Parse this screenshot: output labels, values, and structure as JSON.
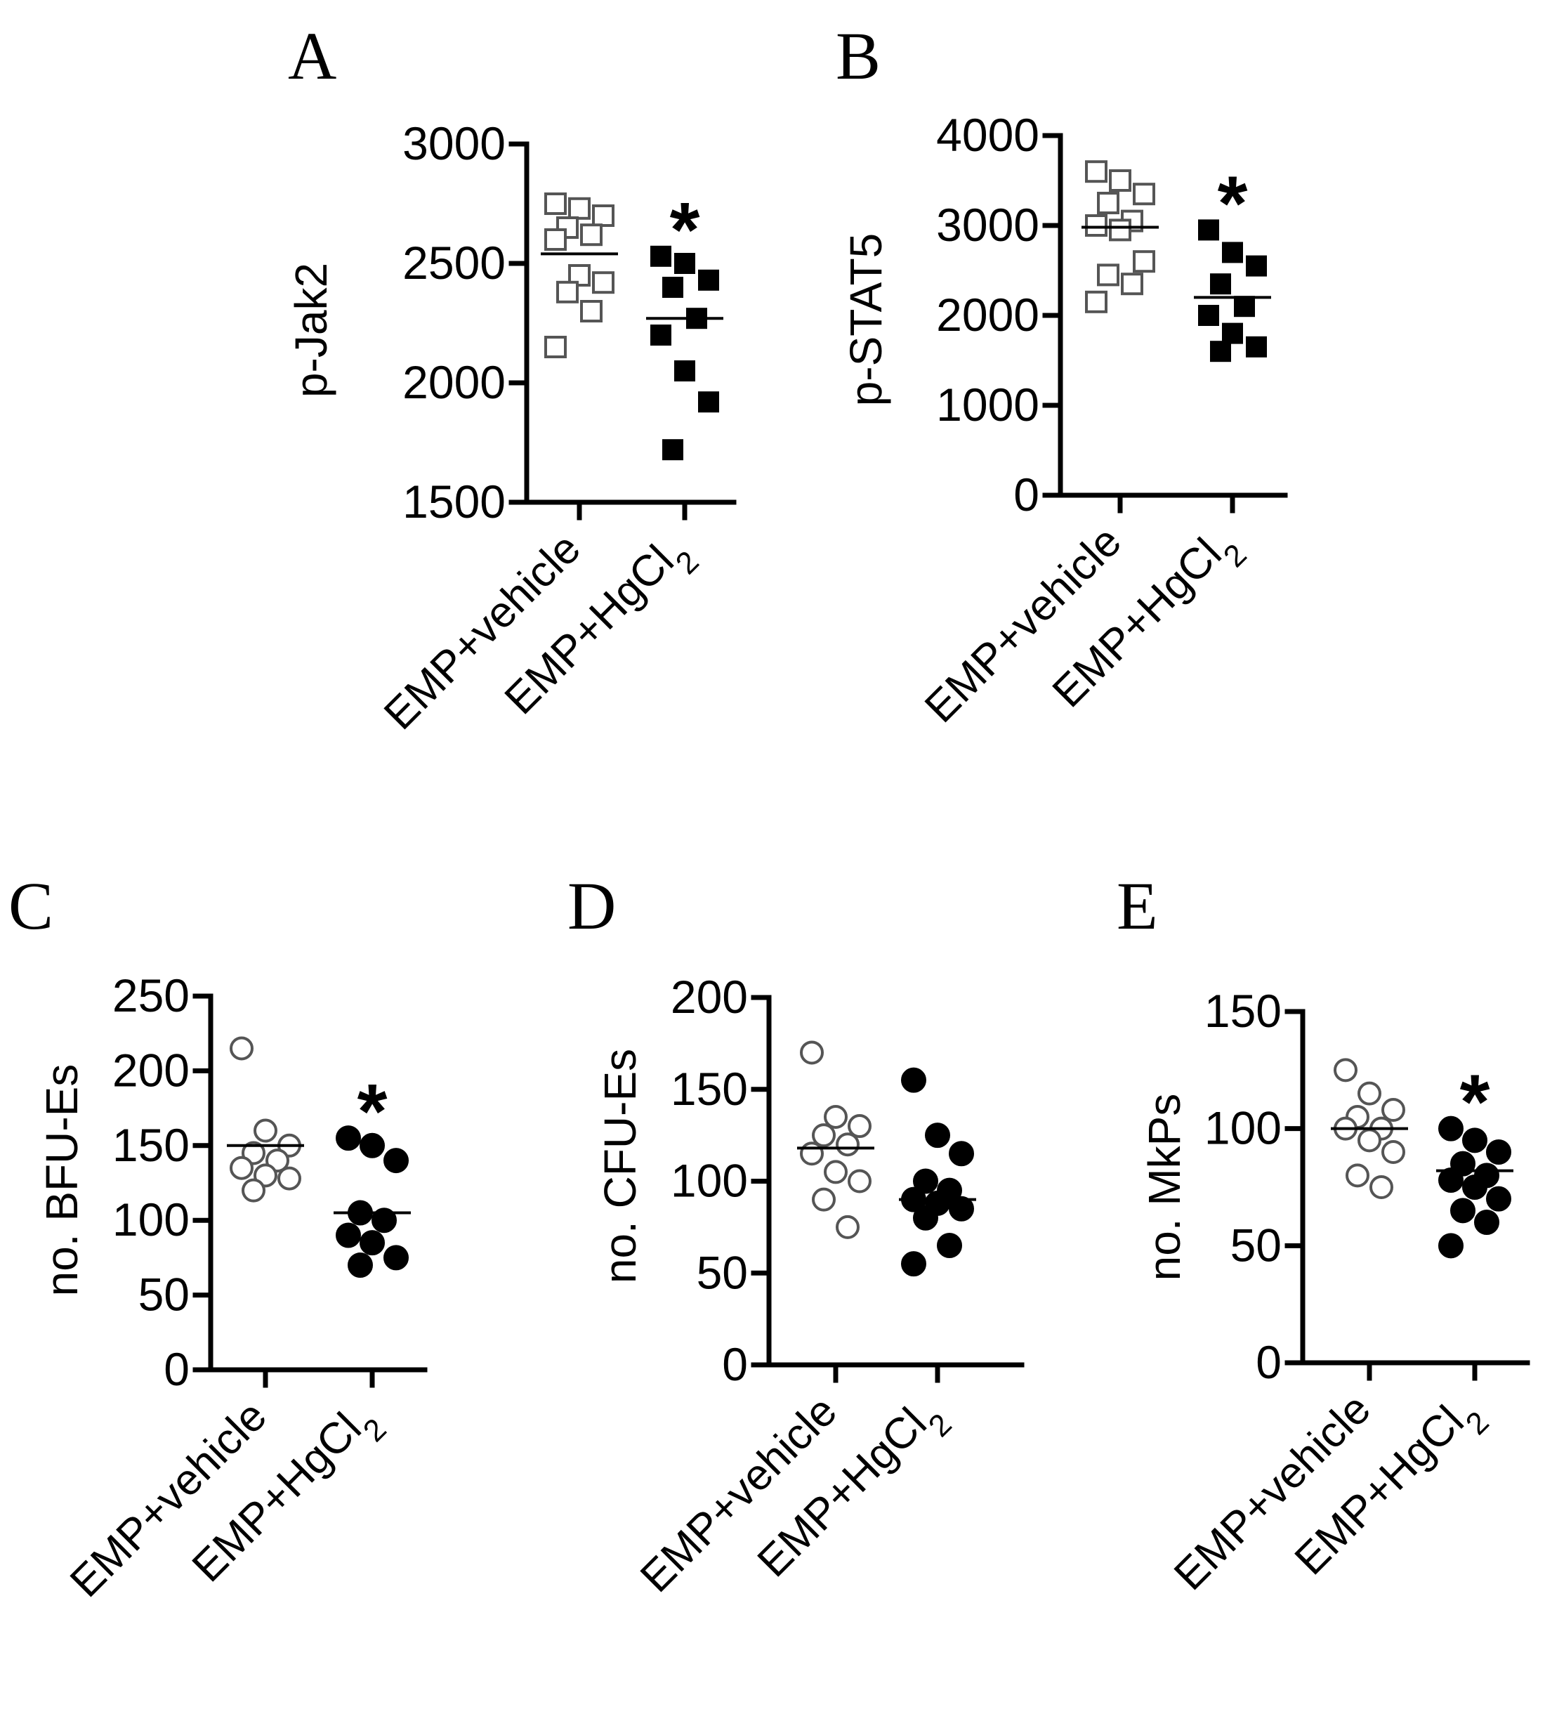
{
  "chart_data": [
    {
      "panel": "A",
      "type": "scatter",
      "ylabel": "p-Jak2",
      "ylim": [
        1500,
        3000
      ],
      "yticks": [
        1500,
        2000,
        2500,
        3000
      ],
      "categories": [
        "EMP+vehicle",
        "EMP+HgCl2"
      ],
      "marker": "square",
      "significance": "*",
      "series": [
        {
          "name": "EMP+vehicle",
          "fill": "open",
          "mean": 2540,
          "values": [
            2750,
            2730,
            2700,
            2650,
            2620,
            2600,
            2450,
            2420,
            2380,
            2300,
            2150
          ]
        },
        {
          "name": "EMP+HgCl2",
          "fill": "filled",
          "mean": 2270,
          "values": [
            2530,
            2500,
            2430,
            2400,
            2270,
            2200,
            2050,
            1920,
            1720
          ]
        }
      ]
    },
    {
      "panel": "B",
      "type": "scatter",
      "ylabel": "p-STAT5",
      "ylim": [
        0,
        4000
      ],
      "yticks": [
        0,
        1000,
        2000,
        3000,
        4000
      ],
      "categories": [
        "EMP+vehicle",
        "EMP+HgCl2"
      ],
      "marker": "square",
      "significance": "*",
      "series": [
        {
          "name": "EMP+vehicle",
          "fill": "open",
          "mean": 2980,
          "values": [
            3600,
            3500,
            3350,
            3250,
            3050,
            3000,
            2950,
            2600,
            2450,
            2350,
            2150
          ]
        },
        {
          "name": "EMP+HgCl2",
          "fill": "filled",
          "mean": 2200,
          "values": [
            2950,
            2700,
            2550,
            2350,
            2100,
            2000,
            1800,
            1650,
            1600
          ]
        }
      ]
    },
    {
      "panel": "C",
      "type": "scatter",
      "ylabel": "no. BFU-Es",
      "ylim": [
        0,
        250
      ],
      "yticks": [
        0,
        50,
        100,
        150,
        200,
        250
      ],
      "categories": [
        "EMP+vehicle",
        "EMP+HgCl2"
      ],
      "marker": "circle",
      "significance": "*",
      "series": [
        {
          "name": "EMP+vehicle",
          "fill": "open",
          "mean": 150,
          "values": [
            215,
            160,
            150,
            145,
            140,
            135,
            130,
            128,
            120
          ]
        },
        {
          "name": "EMP+HgCl2",
          "fill": "filled",
          "mean": 105,
          "values": [
            155,
            150,
            140,
            105,
            100,
            90,
            85,
            75,
            70
          ]
        }
      ]
    },
    {
      "panel": "D",
      "type": "scatter",
      "ylabel": "no. CFU-Es",
      "ylim": [
        0,
        200
      ],
      "yticks": [
        0,
        50,
        100,
        150,
        200
      ],
      "categories": [
        "EMP+vehicle",
        "EMP+HgCl2"
      ],
      "marker": "circle",
      "significance": "",
      "series": [
        {
          "name": "EMP+vehicle",
          "fill": "open",
          "mean": 118,
          "values": [
            170,
            135,
            130,
            125,
            120,
            115,
            105,
            100,
            90,
            75
          ]
        },
        {
          "name": "EMP+HgCl2",
          "fill": "filled",
          "mean": 90,
          "values": [
            155,
            125,
            115,
            100,
            95,
            90,
            88,
            85,
            80,
            65,
            55
          ]
        }
      ]
    },
    {
      "panel": "E",
      "type": "scatter",
      "ylabel": "no. MkPs",
      "ylim": [
        0,
        150
      ],
      "yticks": [
        0,
        50,
        100,
        150
      ],
      "categories": [
        "EMP+vehicle",
        "EMP+HgCl2"
      ],
      "marker": "circle",
      "significance": "*",
      "series": [
        {
          "name": "EMP+vehicle",
          "fill": "open",
          "mean": 100,
          "values": [
            125,
            115,
            108,
            105,
            100,
            100,
            95,
            90,
            80,
            75
          ]
        },
        {
          "name": "EMP+HgCl2",
          "fill": "filled",
          "mean": 82,
          "values": [
            100,
            95,
            90,
            85,
            80,
            78,
            75,
            70,
            65,
            60,
            50
          ]
        }
      ]
    }
  ]
}
